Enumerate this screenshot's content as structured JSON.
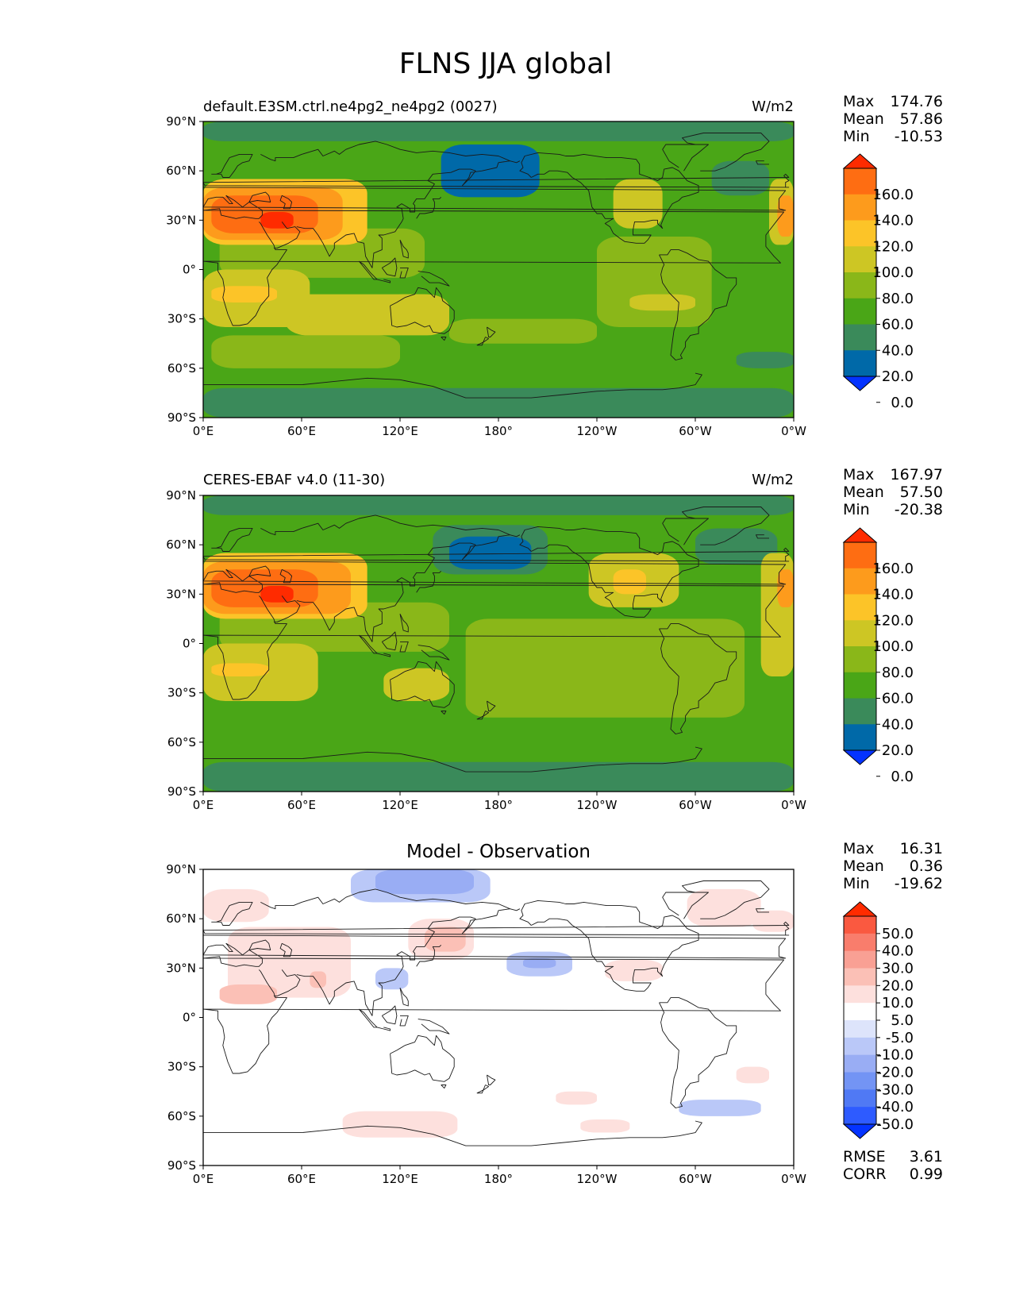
{
  "figure": {
    "title": "FLNS JJA global"
  },
  "axes": {
    "lat_labels": [
      "90°N",
      "60°N",
      "30°N",
      "0°",
      "30°S",
      "60°S",
      "90°S"
    ],
    "lon_labels": [
      "0°E",
      "60°E",
      "120°E",
      "180°",
      "120°W",
      "60°W",
      "0°W"
    ]
  },
  "colors": {
    "abs_levels": [
      "#0433ff",
      "#0069a8",
      "#3a8a5a",
      "#4aa617",
      "#8ab719",
      "#cdc624",
      "#fcc428",
      "#fd9b1c",
      "#fe6d12",
      "#ff2b00"
    ],
    "diff_levels": [
      "#0433ff",
      "#2e5bff",
      "#5079f4",
      "#7394f4",
      "#99adf4",
      "#bac8f8",
      "#dde4fb",
      "#ffffff",
      "#fde0dd",
      "#fbc0b6",
      "#f9a094",
      "#f97d6c",
      "#fa5940",
      "#ff2b00"
    ]
  },
  "panels": {
    "model": {
      "title": "default.E3SM.ctrl.ne4pg2_ne4pg2 (0027)",
      "units": "W/m2",
      "stats": {
        "max_label": "Max",
        "max": "174.76",
        "mean_label": "Mean",
        "mean": "57.86",
        "min_label": "Min",
        "min": "-10.53"
      },
      "colorbar_labels": [
        "160.0",
        "140.0",
        "120.0",
        "100.0",
        "80.0",
        "60.0",
        "40.0",
        "20.0",
        "0.0"
      ]
    },
    "obs": {
      "title": "CERES-EBAF v4.0 (11-30)",
      "units": "W/m2",
      "stats": {
        "max_label": "Max",
        "max": "167.97",
        "mean_label": "Mean",
        "mean": "57.50",
        "min_label": "Min",
        "min": "-20.38"
      },
      "colorbar_labels": [
        "160.0",
        "140.0",
        "120.0",
        "100.0",
        "80.0",
        "60.0",
        "40.0",
        "20.0",
        "0.0"
      ]
    },
    "diff": {
      "title": "Model - Observation",
      "stats": {
        "max_label": "Max",
        "max": "16.31",
        "mean_label": "Mean",
        "mean": "0.36",
        "min_label": "Min",
        "min": "-19.62"
      },
      "colorbar_labels": [
        "50.0",
        "40.0",
        "30.0",
        "20.0",
        "10.0",
        "5.0",
        "-5.0",
        "-10.0",
        "-20.0",
        "-30.0",
        "-40.0",
        "-50.0"
      ],
      "rmse_label": "RMSE",
      "rmse": "3.61",
      "corr_label": "CORR",
      "corr": "0.99"
    }
  },
  "chart_data": [
    {
      "type": "heatmap",
      "title": "default.E3SM.ctrl.ne4pg2_ne4pg2 (0027)",
      "units": "W/m2",
      "x_range": [
        0,
        360
      ],
      "y_range": [
        -90,
        90
      ],
      "levels": [
        0,
        20,
        40,
        60,
        80,
        100,
        120,
        140,
        160
      ],
      "extend": "both",
      "stats": {
        "max": 174.76,
        "mean": 57.86,
        "min": -10.53
      },
      "regions": [
        {
          "lon": [
            0,
            360
          ],
          "lat": [
            -90,
            90
          ],
          "level": 40
        },
        {
          "lon": [
            0,
            360
          ],
          "lat": [
            78,
            90
          ],
          "level": 20
        },
        {
          "lon": [
            5,
            120
          ],
          "lat": [
            -60,
            -40
          ],
          "level": 60
        },
        {
          "lon": [
            0,
            360
          ],
          "lat": [
            -90,
            -72
          ],
          "level": 20
        },
        {
          "lon": [
            145,
            205
          ],
          "lat": [
            44,
            76
          ],
          "level": 0
        },
        {
          "lon": [
            310,
            345
          ],
          "lat": [
            45,
            66
          ],
          "level": 20
        },
        {
          "lon": [
            325,
            360
          ],
          "lat": [
            -60,
            -50
          ],
          "level": 20
        },
        {
          "lon": [
            10,
            135
          ],
          "lat": [
            -5,
            25
          ],
          "level": 60
        },
        {
          "lon": [
            240,
            310
          ],
          "lat": [
            -35,
            20
          ],
          "level": 60
        },
        {
          "lon": [
            50,
            150
          ],
          "lat": [
            -40,
            -15
          ],
          "level": 80
        },
        {
          "lon": [
            110,
            145
          ],
          "lat": [
            -35,
            -15
          ],
          "level": 80
        },
        {
          "lon": [
            0,
            65
          ],
          "lat": [
            -35,
            0
          ],
          "level": 80
        },
        {
          "lon": [
            5,
            45
          ],
          "lat": [
            -20,
            -10
          ],
          "level": 100
        },
        {
          "lon": [
            150,
            240
          ],
          "lat": [
            -45,
            -30
          ],
          "level": 60
        },
        {
          "lon": [
            260,
            300
          ],
          "lat": [
            -25,
            -15
          ],
          "level": 80
        },
        {
          "lon": [
            250,
            280
          ],
          "lat": [
            25,
            55
          ],
          "level": 80
        },
        {
          "lon": [
            345,
            360
          ],
          "lat": [
            15,
            55
          ],
          "level": 80
        },
        {
          "lon": [
            350,
            360
          ],
          "lat": [
            20,
            45
          ],
          "level": 120
        },
        {
          "lon": [
            0,
            100
          ],
          "lat": [
            15,
            55
          ],
          "level": 100
        },
        {
          "lon": [
            0,
            85
          ],
          "lat": [
            18,
            50
          ],
          "level": 120
        },
        {
          "lon": [
            5,
            70
          ],
          "lat": [
            22,
            45
          ],
          "level": 140
        },
        {
          "lon": [
            35,
            55
          ],
          "lat": [
            25,
            35
          ],
          "level": 160
        }
      ]
    },
    {
      "type": "heatmap",
      "title": "CERES-EBAF v4.0 (11-30)",
      "units": "W/m2",
      "x_range": [
        0,
        360
      ],
      "y_range": [
        -90,
        90
      ],
      "levels": [
        0,
        20,
        40,
        60,
        80,
        100,
        120,
        140,
        160
      ],
      "extend": "both",
      "stats": {
        "max": 167.97,
        "mean": 57.5,
        "min": -20.38
      },
      "regions": [
        {
          "lon": [
            0,
            360
          ],
          "lat": [
            -90,
            90
          ],
          "level": 40
        },
        {
          "lon": [
            0,
            360
          ],
          "lat": [
            78,
            90
          ],
          "level": 20
        },
        {
          "lon": [
            0,
            360
          ],
          "lat": [
            -90,
            -72
          ],
          "level": 20
        },
        {
          "lon": [
            140,
            210
          ],
          "lat": [
            42,
            72
          ],
          "level": 20
        },
        {
          "lon": [
            150,
            200
          ],
          "lat": [
            45,
            65
          ],
          "level": 0
        },
        {
          "lon": [
            300,
            350
          ],
          "lat": [
            48,
            70
          ],
          "level": 20
        },
        {
          "lon": [
            10,
            150
          ],
          "lat": [
            -5,
            25
          ],
          "level": 60
        },
        {
          "lon": [
            160,
            330
          ],
          "lat": [
            -45,
            15
          ],
          "level": 60
        },
        {
          "lon": [
            0,
            70
          ],
          "lat": [
            -35,
            0
          ],
          "level": 80
        },
        {
          "lon": [
            5,
            40
          ],
          "lat": [
            -20,
            -12
          ],
          "level": 100
        },
        {
          "lon": [
            110,
            150
          ],
          "lat": [
            -35,
            -15
          ],
          "level": 80
        },
        {
          "lon": [
            235,
            290
          ],
          "lat": [
            22,
            55
          ],
          "level": 80
        },
        {
          "lon": [
            250,
            270
          ],
          "lat": [
            30,
            45
          ],
          "level": 100
        },
        {
          "lon": [
            340,
            360
          ],
          "lat": [
            -20,
            55
          ],
          "level": 80
        },
        {
          "lon": [
            350,
            360
          ],
          "lat": [
            22,
            45
          ],
          "level": 120
        },
        {
          "lon": [
            0,
            100
          ],
          "lat": [
            15,
            55
          ],
          "level": 100
        },
        {
          "lon": [
            0,
            90
          ],
          "lat": [
            18,
            50
          ],
          "level": 120
        },
        {
          "lon": [
            5,
            70
          ],
          "lat": [
            22,
            45
          ],
          "level": 140
        },
        {
          "lon": [
            35,
            55
          ],
          "lat": [
            25,
            35
          ],
          "level": 160
        }
      ]
    },
    {
      "type": "heatmap",
      "title": "Model - Observation",
      "x_range": [
        0,
        360
      ],
      "y_range": [
        -90,
        90
      ],
      "levels": [
        -50,
        -40,
        -30,
        -20,
        -10,
        -5,
        5,
        10,
        20,
        30,
        40,
        50
      ],
      "extend": "both",
      "stats": {
        "max": 16.31,
        "mean": 0.36,
        "min": -19.62,
        "rmse": 3.61,
        "corr": 0.99
      },
      "regions": [
        {
          "lon": [
            0,
            360
          ],
          "lat": [
            -90,
            90
          ],
          "level": 0
        },
        {
          "lon": [
            0,
            40
          ],
          "lat": [
            58,
            78
          ],
          "level": 5
        },
        {
          "lon": [
            15,
            90
          ],
          "lat": [
            12,
            55
          ],
          "level": 5
        },
        {
          "lon": [
            10,
            45
          ],
          "lat": [
            8,
            20
          ],
          "level": 10
        },
        {
          "lon": [
            65,
            75
          ],
          "lat": [
            18,
            28
          ],
          "level": 10
        },
        {
          "lon": [
            125,
            165
          ],
          "lat": [
            35,
            60
          ],
          "level": 5
        },
        {
          "lon": [
            135,
            160
          ],
          "lat": [
            40,
            55
          ],
          "level": 10
        },
        {
          "lon": [
            295,
            340
          ],
          "lat": [
            55,
            78
          ],
          "level": 5
        },
        {
          "lon": [
            335,
            360
          ],
          "lat": [
            52,
            65
          ],
          "level": 5
        },
        {
          "lon": [
            245,
            280
          ],
          "lat": [
            22,
            35
          ],
          "level": 5
        },
        {
          "lon": [
            85,
            155
          ],
          "lat": [
            -73,
            -57
          ],
          "level": 5
        },
        {
          "lon": [
            230,
            260
          ],
          "lat": [
            -70,
            -62
          ],
          "level": 5
        },
        {
          "lon": [
            215,
            240
          ],
          "lat": [
            -53,
            -45
          ],
          "level": 5
        },
        {
          "lon": [
            325,
            345
          ],
          "lat": [
            -40,
            -30
          ],
          "level": 5
        },
        {
          "lon": [
            90,
            175
          ],
          "lat": [
            70,
            90
          ],
          "level": -5
        },
        {
          "lon": [
            105,
            165
          ],
          "lat": [
            75,
            90
          ],
          "level": -10
        },
        {
          "lon": [
            185,
            225
          ],
          "lat": [
            25,
            40
          ],
          "level": -5
        },
        {
          "lon": [
            195,
            215
          ],
          "lat": [
            30,
            36
          ],
          "level": -10
        },
        {
          "lon": [
            105,
            125
          ],
          "lat": [
            17,
            30
          ],
          "level": -5
        },
        {
          "lon": [
            290,
            340
          ],
          "lat": [
            -60,
            -50
          ],
          "level": -5
        }
      ]
    }
  ]
}
